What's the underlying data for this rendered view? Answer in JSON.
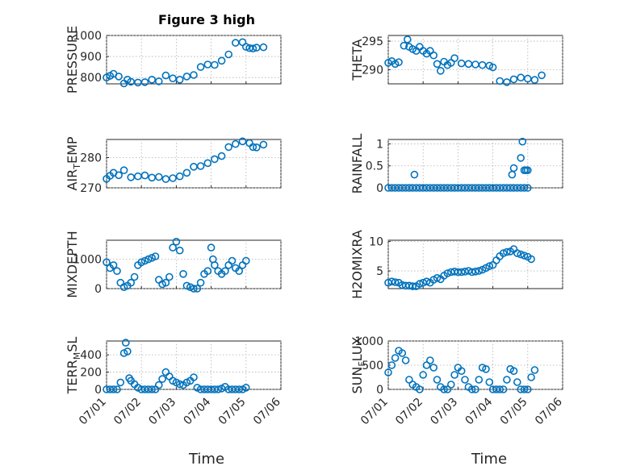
{
  "title": "Figure 3 high",
  "colors": {
    "marker": "#0072BD",
    "axis": "#262626",
    "grid": "#b0b0b0"
  },
  "chart_data": [
    {
      "type": "scatter",
      "id": "pressure",
      "column": 0,
      "row": 0,
      "ylabel": "PRESSURE",
      "ylim": [
        770,
        1000
      ],
      "yticks": [
        800,
        900,
        1000
      ],
      "ytick_labels": [
        "800",
        "900",
        "1000"
      ],
      "show_xticks": false,
      "xlim": [
        0,
        5
      ],
      "xticks": [
        0,
        1,
        2,
        3,
        4,
        5
      ],
      "x": [
        0.0,
        0.1,
        0.2,
        0.35,
        0.5,
        0.6,
        0.7,
        0.9,
        1.1,
        1.3,
        1.5,
        1.7,
        1.9,
        2.1,
        2.3,
        2.5,
        2.7,
        2.9,
        3.1,
        3.3,
        3.5,
        3.7,
        3.9,
        4.0,
        4.1,
        4.2,
        4.3,
        4.5
      ],
      "y": [
        800,
        808,
        818,
        805,
        772,
        790,
        780,
        776,
        778,
        790,
        782,
        810,
        796,
        790,
        805,
        812,
        850,
        862,
        860,
        880,
        910,
        965,
        968,
        946,
        940,
        938,
        942,
        944
      ],
      "series_name": "PRESSURE"
    },
    {
      "type": "scatter",
      "id": "theta",
      "column": 1,
      "row": 0,
      "ylabel": "THETA",
      "ylim": [
        287.5,
        296
      ],
      "yticks": [
        290,
        295
      ],
      "ytick_labels": [
        "290",
        "295"
      ],
      "show_xticks": false,
      "xlim": [
        0,
        5
      ],
      "xticks": [
        0,
        1,
        2,
        3,
        4,
        5
      ],
      "x": [
        0.0,
        0.1,
        0.2,
        0.3,
        0.45,
        0.55,
        0.6,
        0.7,
        0.8,
        0.9,
        1.0,
        1.1,
        1.2,
        1.3,
        1.4,
        1.5,
        1.6,
        1.7,
        1.8,
        1.9,
        2.1,
        2.3,
        2.5,
        2.7,
        2.9,
        3.0,
        3.2,
        3.4,
        3.6,
        3.8,
        4.0,
        4.2,
        4.4
      ],
      "y": [
        291.2,
        291.5,
        291.0,
        291.3,
        294.2,
        295.3,
        294.0,
        293.6,
        293.3,
        294.0,
        293.3,
        292.8,
        293.3,
        292.5,
        291.0,
        289.8,
        291.4,
        290.8,
        291.2,
        292.0,
        291.1,
        291.0,
        290.9,
        290.8,
        290.7,
        290.4,
        288.0,
        287.8,
        288.3,
        288.6,
        288.4,
        288.2,
        289.0
      ],
      "series_name": "THETA"
    },
    {
      "type": "scatter",
      "id": "air_temp",
      "column": 0,
      "row": 1,
      "ylabel": "AIR_TEMP",
      "ylim": [
        270,
        286
      ],
      "yticks": [
        270,
        280
      ],
      "ytick_labels": [
        "270",
        "280"
      ],
      "show_xticks": false,
      "xlim": [
        0,
        5
      ],
      "xticks": [
        0,
        1,
        2,
        3,
        4,
        5
      ],
      "x": [
        0.0,
        0.1,
        0.2,
        0.35,
        0.5,
        0.7,
        0.9,
        1.1,
        1.3,
        1.5,
        1.7,
        1.9,
        2.1,
        2.3,
        2.5,
        2.7,
        2.9,
        3.1,
        3.3,
        3.5,
        3.7,
        3.9,
        4.1,
        4.2,
        4.3,
        4.5
      ],
      "y": [
        273.0,
        274.0,
        275.0,
        274.2,
        275.8,
        273.5,
        273.8,
        274.1,
        273.4,
        273.6,
        272.9,
        273.2,
        273.8,
        275.0,
        277.0,
        277.2,
        278.2,
        279.5,
        280.5,
        283.5,
        284.5,
        285.4,
        284.8,
        283.5,
        283.4,
        284.3
      ],
      "series_name": "AIR_TEMP"
    },
    {
      "type": "scatter",
      "id": "rainfall",
      "column": 1,
      "row": 1,
      "ylabel": "RAINFALL",
      "ylim": [
        0,
        1.1
      ],
      "yticks": [
        0,
        0.5,
        1
      ],
      "ytick_labels": [
        "0",
        "0.5",
        "1"
      ],
      "show_xticks": false,
      "xlim": [
        0,
        5
      ],
      "xticks": [
        0,
        1,
        2,
        3,
        4,
        5
      ],
      "x": [
        0.0,
        0.1,
        0.2,
        0.3,
        0.4,
        0.5,
        0.6,
        0.7,
        0.8,
        0.9,
        1.0,
        1.1,
        1.2,
        1.3,
        1.4,
        1.5,
        1.6,
        1.7,
        1.8,
        1.9,
        2.0,
        2.1,
        2.2,
        2.3,
        2.4,
        2.5,
        2.6,
        2.7,
        2.8,
        2.9,
        3.0,
        3.1,
        3.2,
        3.3,
        3.4,
        3.5,
        3.6,
        3.7,
        3.8,
        3.9,
        4.0,
        0.75,
        3.55,
        3.6,
        3.8,
        3.85,
        3.9,
        3.95,
        4.0
      ],
      "y": [
        0,
        0,
        0,
        0,
        0,
        0,
        0,
        0,
        0,
        0,
        0,
        0,
        0,
        0,
        0,
        0,
        0,
        0,
        0,
        0,
        0,
        0,
        0,
        0,
        0,
        0,
        0,
        0,
        0,
        0,
        0,
        0,
        0,
        0,
        0,
        0,
        0,
        0,
        0,
        0,
        0,
        0.3,
        0.3,
        0.45,
        0.68,
        1.05,
        0.4,
        0.4,
        0.4
      ],
      "series_name": "RAINFALL"
    },
    {
      "type": "scatter",
      "id": "mixdepth",
      "column": 0,
      "row": 2,
      "ylabel": "MIXDEPTH",
      "ylim": [
        0,
        1650
      ],
      "yticks": [
        0,
        1000
      ],
      "ytick_labels": [
        "0",
        "1000"
      ],
      "show_xticks": false,
      "xlim": [
        0,
        5
      ],
      "xticks": [
        0,
        1,
        2,
        3,
        4,
        5
      ],
      "x": [
        0.0,
        0.1,
        0.2,
        0.3,
        0.4,
        0.5,
        0.6,
        0.7,
        0.8,
        0.9,
        1.0,
        1.1,
        1.2,
        1.3,
        1.4,
        1.5,
        1.6,
        1.7,
        1.8,
        1.9,
        2.0,
        2.1,
        2.2,
        2.3,
        2.4,
        2.5,
        2.6,
        2.7,
        2.8,
        2.9,
        3.0,
        3.05,
        3.1,
        3.2,
        3.3,
        3.4,
        3.5,
        3.6,
        3.7,
        3.8,
        3.9,
        4.0
      ],
      "y": [
        900,
        700,
        800,
        600,
        200,
        50,
        100,
        200,
        400,
        800,
        900,
        950,
        1000,
        1050,
        1100,
        300,
        150,
        200,
        400,
        1400,
        1600,
        1300,
        500,
        100,
        50,
        0,
        0,
        200,
        500,
        600,
        1400,
        1000,
        800,
        600,
        500,
        600,
        800,
        950,
        700,
        600,
        800,
        950
      ],
      "series_name": "MIXDEPTH"
    },
    {
      "type": "scatter",
      "id": "h2omixra",
      "column": 1,
      "row": 2,
      "ylabel": "H2OMIXRA",
      "ylim": [
        2,
        10.2
      ],
      "yticks": [
        5,
        10
      ],
      "ytick_labels": [
        "5",
        "10"
      ],
      "show_xticks": false,
      "xlim": [
        0,
        5
      ],
      "xticks": [
        0,
        1,
        2,
        3,
        4,
        5
      ],
      "x": [
        0.0,
        0.1,
        0.2,
        0.3,
        0.4,
        0.5,
        0.6,
        0.7,
        0.8,
        0.9,
        1.0,
        1.1,
        1.2,
        1.3,
        1.4,
        1.5,
        1.6,
        1.7,
        1.8,
        1.9,
        2.0,
        2.1,
        2.2,
        2.3,
        2.4,
        2.5,
        2.6,
        2.7,
        2.8,
        2.9,
        3.0,
        3.1,
        3.2,
        3.3,
        3.4,
        3.5,
        3.6,
        3.7,
        3.8,
        3.9,
        4.0,
        4.1
      ],
      "y": [
        3.0,
        3.2,
        3.1,
        3.0,
        2.6,
        2.5,
        2.5,
        2.4,
        2.4,
        2.8,
        3.0,
        3.2,
        3.0,
        3.5,
        3.8,
        3.6,
        4.2,
        4.6,
        4.8,
        4.9,
        4.8,
        4.8,
        4.9,
        5.0,
        4.8,
        4.9,
        5.0,
        5.2,
        5.5,
        5.8,
        6.0,
        6.8,
        7.5,
        8.0,
        8.2,
        8.3,
        8.7,
        8.0,
        7.8,
        7.6,
        7.4,
        7.0
      ],
      "series_name": "H2OMIXRA"
    },
    {
      "type": "scatter",
      "id": "terr_msl",
      "column": 0,
      "row": 3,
      "ylabel": "TERR_MSL",
      "ylim": [
        0,
        560
      ],
      "yticks": [
        0,
        200,
        400
      ],
      "ytick_labels": [
        "0",
        "200",
        "400"
      ],
      "show_xticks": true,
      "xlim": [
        0,
        5
      ],
      "xticks": [
        0,
        1,
        2,
        3,
        4,
        5
      ],
      "x": [
        0.0,
        0.1,
        0.2,
        0.3,
        0.4,
        0.5,
        0.55,
        0.6,
        0.65,
        0.7,
        0.8,
        0.9,
        1.0,
        1.1,
        1.2,
        1.3,
        1.4,
        1.5,
        1.6,
        1.7,
        1.8,
        1.9,
        2.0,
        2.1,
        2.2,
        2.3,
        2.4,
        2.5,
        2.6,
        2.7,
        2.8,
        2.9,
        3.0,
        3.1,
        3.2,
        3.3,
        3.4,
        3.5,
        3.6,
        3.7,
        3.8,
        3.9,
        4.0
      ],
      "y": [
        0,
        0,
        0,
        0,
        80,
        420,
        540,
        440,
        130,
        100,
        60,
        20,
        0,
        0,
        0,
        0,
        0,
        50,
        120,
        200,
        150,
        100,
        80,
        60,
        50,
        80,
        100,
        140,
        20,
        0,
        0,
        0,
        0,
        0,
        0,
        10,
        30,
        0,
        0,
        0,
        0,
        0,
        20
      ],
      "series_name": "TERR_MSL"
    },
    {
      "type": "scatter",
      "id": "sun_flux",
      "column": 1,
      "row": 3,
      "ylabel": "SUN_FLUX",
      "ylim": [
        0,
        1000
      ],
      "yticks": [
        0,
        500,
        1000
      ],
      "ytick_labels": [
        "0",
        "500",
        "1000"
      ],
      "show_xticks": true,
      "xlim": [
        0,
        5
      ],
      "xticks": [
        0,
        1,
        2,
        3,
        4,
        5
      ],
      "x": [
        0.0,
        0.1,
        0.2,
        0.3,
        0.4,
        0.5,
        0.6,
        0.7,
        0.8,
        0.9,
        1.0,
        1.1,
        1.2,
        1.3,
        1.4,
        1.5,
        1.6,
        1.7,
        1.8,
        1.9,
        2.0,
        2.1,
        2.2,
        2.3,
        2.4,
        2.5,
        2.6,
        2.7,
        2.8,
        2.9,
        3.0,
        3.1,
        3.2,
        3.3,
        3.4,
        3.5,
        3.6,
        3.7,
        3.8,
        3.9,
        4.0,
        4.1,
        4.2
      ],
      "y": [
        350,
        500,
        650,
        800,
        750,
        600,
        200,
        100,
        50,
        0,
        300,
        500,
        600,
        450,
        200,
        50,
        0,
        0,
        100,
        300,
        450,
        380,
        200,
        50,
        0,
        0,
        200,
        450,
        420,
        150,
        0,
        0,
        0,
        0,
        200,
        420,
        380,
        150,
        0,
        0,
        0,
        250,
        400
      ],
      "series_name": "SUN_FLUX"
    }
  ],
  "xtick_labels": [
    "07/01",
    "07/02",
    "07/03",
    "07/04",
    "07/05",
    "07/06"
  ],
  "xlabel": "Time"
}
